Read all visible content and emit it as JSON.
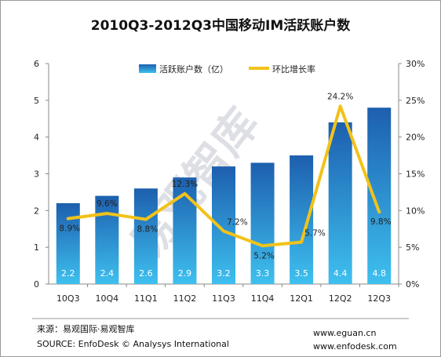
{
  "chart_data": {
    "type": "bar",
    "title": "2010Q3-2012Q3中国移动IM活跃账户数",
    "categories": [
      "10Q3",
      "10Q4",
      "11Q1",
      "11Q2",
      "11Q3",
      "11Q4",
      "12Q1",
      "12Q2",
      "12Q3"
    ],
    "series": [
      {
        "name": "活跃账户数（亿）",
        "type": "bar",
        "axis": "left",
        "values": [
          2.2,
          2.4,
          2.6,
          2.9,
          3.2,
          3.3,
          3.5,
          4.4,
          4.8
        ],
        "value_labels": [
          "2.2",
          "2.4",
          "2.6",
          "2.9",
          "3.2",
          "3.3",
          "3.5",
          "4.4",
          "4.8"
        ]
      },
      {
        "name": "环比增长率",
        "type": "line",
        "axis": "right",
        "values": [
          8.9,
          9.6,
          8.8,
          12.3,
          7.2,
          5.2,
          5.7,
          24.2,
          9.8
        ],
        "value_labels": [
          "8.9%",
          "9.6%",
          "8.8%",
          "12.3%",
          "7.2%",
          "5.2%",
          "5.7%",
          "24.2%",
          "9.8%"
        ]
      }
    ],
    "y_left": {
      "ticks": [
        "0",
        "1",
        "2",
        "3",
        "4",
        "5",
        "6"
      ],
      "ylim": [
        0,
        6
      ]
    },
    "y_right": {
      "ticks": [
        "0%",
        "5%",
        "10%",
        "15%",
        "20%",
        "25%",
        "30%"
      ],
      "ylim": [
        0,
        30
      ]
    },
    "grid": false,
    "legend_position": "top-center",
    "colors": {
      "bar_top": "#1d5fae",
      "bar_bottom": "#3ec0ef",
      "line": "#f2c21a"
    }
  },
  "watermark": "易观智库",
  "source": {
    "line1": "来源：易观国际·易观智库",
    "line2": "SOURCE:  EnfoDesk © Analysys International",
    "url1": "www.eguan.cn",
    "url2": "www.enfodesk.com"
  }
}
